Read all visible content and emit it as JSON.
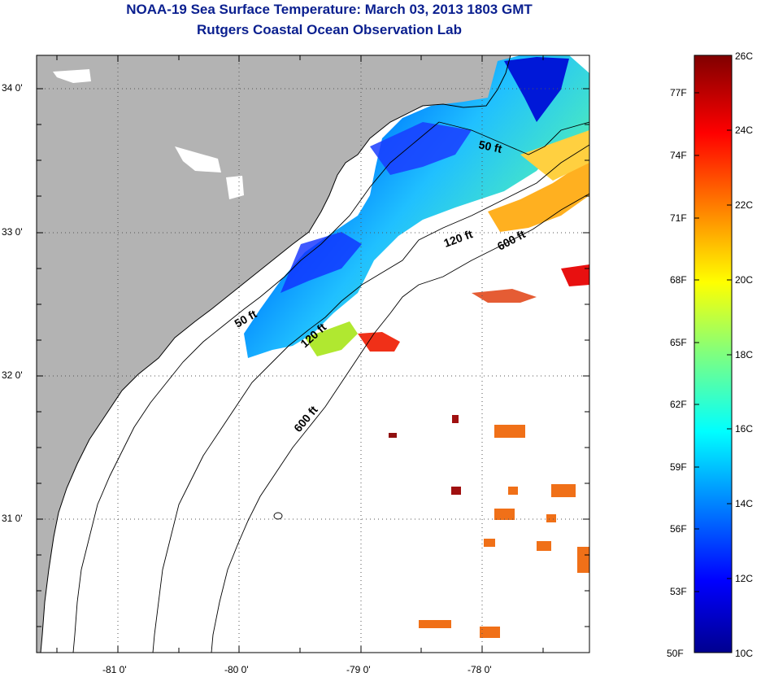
{
  "title": {
    "line1": "NOAA-19 Sea Surface Temperature:  March 03, 2013 1803 GMT",
    "line2": "Rutgers Coastal Ocean Observation Lab"
  },
  "axes": {
    "lon_ticks": [
      {
        "value": -81,
        "label": "-81 0'"
      },
      {
        "value": -80,
        "label": "-80 0'"
      },
      {
        "value": -79,
        "label": "-79 0'"
      },
      {
        "value": -78,
        "label": "-78 0'"
      }
    ],
    "lat_ticks": [
      {
        "value": 34,
        "label": "34 0'"
      },
      {
        "value": 33,
        "label": "33 0'"
      },
      {
        "value": 32,
        "label": "32 0'"
      },
      {
        "value": 31,
        "label": "31 0'"
      }
    ],
    "lon_range": [
      -81.7,
      -77.1
    ],
    "lat_range": [
      30.2,
      34.3
    ]
  },
  "contours": [
    {
      "label": "50 ft"
    },
    {
      "label": "50 ft"
    },
    {
      "label": "120 ft"
    },
    {
      "label": "120 ft"
    },
    {
      "label": "600 ft"
    },
    {
      "label": "600 ft"
    }
  ],
  "colorbar": {
    "min_c": 10,
    "max_c": 26,
    "celsius_labels": [
      "26C",
      "24C",
      "22C",
      "20C",
      "18C",
      "16C",
      "14C",
      "12C",
      "10C"
    ],
    "fahrenheit_labels": [
      "77F",
      "74F",
      "71F",
      "68F",
      "65F",
      "62F",
      "59F",
      "56F",
      "53F",
      "50F"
    ]
  },
  "colors": {
    "land": "#b3b3b3",
    "title": "#0a1f8f"
  }
}
